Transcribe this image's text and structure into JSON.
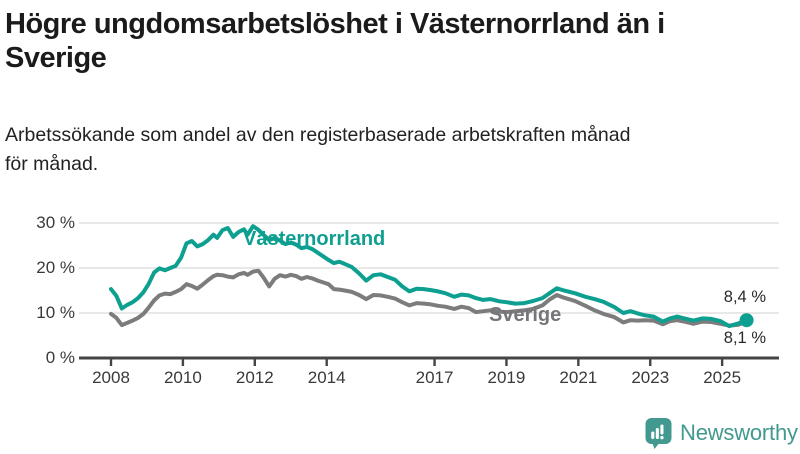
{
  "header": {
    "title_line1": "Högre ungdomsarbetslöshet i Västernorrland än i",
    "title_line2": "Sverige",
    "subtitle_line1": "Arbetssökande som andel av den registerbaserade arbetskraften månad",
    "subtitle_line2": "för månad."
  },
  "footer": {
    "brand_name": "Newsworthy",
    "brand_color": "#42998f"
  },
  "chart_data": {
    "type": "line",
    "title": "Högre ungdomsarbetslöshet i Västernorrland än i Sverige",
    "subtitle": "Arbetssökande som andel av den registerbaserade arbetskraften månad för månad.",
    "unit": "%",
    "ylim": [
      0,
      32
    ],
    "xlim": [
      2007.9,
      2026.6
    ],
    "grid": "horizontal",
    "colors": {
      "grid": "#dadada",
      "axis": "#454545",
      "tick_label": "#3a3a3a"
    },
    "y_ticks": [
      {
        "value": 0,
        "label": "0 %"
      },
      {
        "value": 10,
        "label": "10 %"
      },
      {
        "value": 20,
        "label": "20 %"
      },
      {
        "value": 30,
        "label": "30 %"
      }
    ],
    "x_ticks": [
      {
        "year": 2008,
        "label": "2008"
      },
      {
        "year": 2010,
        "label": "2010"
      },
      {
        "year": 2012,
        "label": "2012"
      },
      {
        "year": 2014,
        "label": "2014"
      },
      {
        "year": 2017,
        "label": "2017"
      },
      {
        "year": 2019,
        "label": "2019"
      },
      {
        "year": 2021,
        "label": "2021"
      },
      {
        "year": 2023,
        "label": "2023"
      },
      {
        "year": 2025,
        "label": "2025"
      }
    ],
    "series": [
      {
        "name": "Västernorrland",
        "color": "#0d9f90",
        "end_value": 8.4,
        "end_label": "8,4 %",
        "points": [
          [
            2008.0,
            15.3
          ],
          [
            2008.15,
            13.8
          ],
          [
            2008.3,
            11.0
          ],
          [
            2008.45,
            11.8
          ],
          [
            2008.6,
            12.4
          ],
          [
            2008.75,
            13.3
          ],
          [
            2008.9,
            14.6
          ],
          [
            2009.05,
            16.5
          ],
          [
            2009.2,
            19.0
          ],
          [
            2009.35,
            19.9
          ],
          [
            2009.5,
            19.5
          ],
          [
            2009.65,
            20.0
          ],
          [
            2009.8,
            20.5
          ],
          [
            2009.95,
            22.3
          ],
          [
            2010.1,
            25.5
          ],
          [
            2010.25,
            26.0
          ],
          [
            2010.4,
            24.8
          ],
          [
            2010.55,
            25.3
          ],
          [
            2010.7,
            26.2
          ],
          [
            2010.85,
            27.4
          ],
          [
            2010.95,
            26.7
          ],
          [
            2011.1,
            28.4
          ],
          [
            2011.25,
            28.9
          ],
          [
            2011.4,
            26.9
          ],
          [
            2011.55,
            28.0
          ],
          [
            2011.7,
            28.6
          ],
          [
            2011.8,
            27.4
          ],
          [
            2011.95,
            29.3
          ],
          [
            2012.1,
            28.5
          ],
          [
            2012.25,
            27.3
          ],
          [
            2012.4,
            26.2
          ],
          [
            2012.55,
            26.7
          ],
          [
            2012.7,
            26.1
          ],
          [
            2012.85,
            25.3
          ],
          [
            2013.0,
            25.7
          ],
          [
            2013.15,
            25.2
          ],
          [
            2013.3,
            24.4
          ],
          [
            2013.45,
            24.7
          ],
          [
            2013.6,
            24.2
          ],
          [
            2013.75,
            23.4
          ],
          [
            2013.9,
            22.6
          ],
          [
            2014.05,
            21.8
          ],
          [
            2014.2,
            21.1
          ],
          [
            2014.35,
            21.4
          ],
          [
            2014.5,
            20.9
          ],
          [
            2014.7,
            20.2
          ],
          [
            2014.9,
            18.8
          ],
          [
            2015.1,
            17.2
          ],
          [
            2015.3,
            18.4
          ],
          [
            2015.5,
            18.6
          ],
          [
            2015.7,
            18.0
          ],
          [
            2015.9,
            17.4
          ],
          [
            2016.1,
            15.9
          ],
          [
            2016.3,
            14.8
          ],
          [
            2016.5,
            15.4
          ],
          [
            2016.7,
            15.3
          ],
          [
            2016.9,
            15.1
          ],
          [
            2017.1,
            14.8
          ],
          [
            2017.3,
            14.4
          ],
          [
            2017.55,
            13.6
          ],
          [
            2017.75,
            14.1
          ],
          [
            2017.95,
            13.9
          ],
          [
            2018.15,
            13.3
          ],
          [
            2018.35,
            12.9
          ],
          [
            2018.55,
            13.1
          ],
          [
            2018.8,
            12.6
          ],
          [
            2019.0,
            12.4
          ],
          [
            2019.25,
            12.1
          ],
          [
            2019.5,
            12.2
          ],
          [
            2019.75,
            12.7
          ],
          [
            2020.0,
            13.3
          ],
          [
            2020.2,
            14.4
          ],
          [
            2020.4,
            15.5
          ],
          [
            2020.6,
            15.0
          ],
          [
            2020.9,
            14.4
          ],
          [
            2021.2,
            13.6
          ],
          [
            2021.45,
            13.1
          ],
          [
            2021.7,
            12.5
          ],
          [
            2022.0,
            11.3
          ],
          [
            2022.25,
            10.0
          ],
          [
            2022.45,
            10.4
          ],
          [
            2022.65,
            9.9
          ],
          [
            2022.85,
            9.5
          ],
          [
            2023.1,
            9.2
          ],
          [
            2023.35,
            8.1
          ],
          [
            2023.55,
            8.8
          ],
          [
            2023.75,
            9.2
          ],
          [
            2023.95,
            8.8
          ],
          [
            2024.2,
            8.3
          ],
          [
            2024.45,
            8.8
          ],
          [
            2024.7,
            8.7
          ],
          [
            2024.95,
            8.2
          ],
          [
            2025.2,
            7.1
          ],
          [
            2025.45,
            7.7
          ],
          [
            2025.68,
            8.4
          ]
        ]
      },
      {
        "name": "Sverige",
        "color": "#7c7c7c",
        "end_value": 8.1,
        "end_label": "8,1 %",
        "points": [
          [
            2008.0,
            9.8
          ],
          [
            2008.15,
            8.9
          ],
          [
            2008.3,
            7.3
          ],
          [
            2008.45,
            7.8
          ],
          [
            2008.6,
            8.3
          ],
          [
            2008.75,
            8.9
          ],
          [
            2008.9,
            9.8
          ],
          [
            2009.05,
            11.2
          ],
          [
            2009.2,
            12.8
          ],
          [
            2009.35,
            13.9
          ],
          [
            2009.5,
            14.3
          ],
          [
            2009.65,
            14.2
          ],
          [
            2009.8,
            14.7
          ],
          [
            2009.95,
            15.3
          ],
          [
            2010.1,
            16.4
          ],
          [
            2010.25,
            16.0
          ],
          [
            2010.4,
            15.4
          ],
          [
            2010.55,
            16.3
          ],
          [
            2010.7,
            17.3
          ],
          [
            2010.85,
            18.2
          ],
          [
            2010.95,
            18.5
          ],
          [
            2011.1,
            18.4
          ],
          [
            2011.25,
            18.1
          ],
          [
            2011.4,
            17.9
          ],
          [
            2011.55,
            18.6
          ],
          [
            2011.7,
            18.9
          ],
          [
            2011.8,
            18.5
          ],
          [
            2011.95,
            19.2
          ],
          [
            2012.1,
            19.4
          ],
          [
            2012.25,
            17.8
          ],
          [
            2012.4,
            15.9
          ],
          [
            2012.55,
            17.6
          ],
          [
            2012.7,
            18.4
          ],
          [
            2012.85,
            18.1
          ],
          [
            2013.0,
            18.5
          ],
          [
            2013.15,
            18.2
          ],
          [
            2013.3,
            17.6
          ],
          [
            2013.45,
            18.0
          ],
          [
            2013.6,
            17.7
          ],
          [
            2013.75,
            17.2
          ],
          [
            2013.9,
            16.8
          ],
          [
            2014.05,
            16.4
          ],
          [
            2014.2,
            15.3
          ],
          [
            2014.35,
            15.2
          ],
          [
            2014.5,
            15.0
          ],
          [
            2014.7,
            14.7
          ],
          [
            2014.9,
            14.0
          ],
          [
            2015.1,
            13.1
          ],
          [
            2015.3,
            14.0
          ],
          [
            2015.5,
            13.9
          ],
          [
            2015.7,
            13.6
          ],
          [
            2015.9,
            13.2
          ],
          [
            2016.1,
            12.4
          ],
          [
            2016.3,
            11.7
          ],
          [
            2016.5,
            12.2
          ],
          [
            2016.7,
            12.1
          ],
          [
            2016.9,
            11.9
          ],
          [
            2017.1,
            11.6
          ],
          [
            2017.3,
            11.4
          ],
          [
            2017.55,
            10.9
          ],
          [
            2017.75,
            11.4
          ],
          [
            2017.95,
            11.1
          ],
          [
            2018.15,
            10.2
          ],
          [
            2018.35,
            10.4
          ],
          [
            2018.55,
            10.6
          ],
          [
            2018.8,
            10.3
          ],
          [
            2019.0,
            10.2
          ],
          [
            2019.25,
            10.4
          ],
          [
            2019.5,
            10.6
          ],
          [
            2019.75,
            10.9
          ],
          [
            2020.0,
            11.7
          ],
          [
            2020.2,
            13.0
          ],
          [
            2020.4,
            14.0
          ],
          [
            2020.6,
            13.4
          ],
          [
            2020.9,
            12.7
          ],
          [
            2021.2,
            11.6
          ],
          [
            2021.45,
            10.6
          ],
          [
            2021.7,
            9.8
          ],
          [
            2022.0,
            9.1
          ],
          [
            2022.25,
            7.9
          ],
          [
            2022.45,
            8.4
          ],
          [
            2022.65,
            8.3
          ],
          [
            2022.85,
            8.4
          ],
          [
            2023.1,
            8.3
          ],
          [
            2023.35,
            7.5
          ],
          [
            2023.55,
            8.2
          ],
          [
            2023.75,
            8.4
          ],
          [
            2023.95,
            8.1
          ],
          [
            2024.2,
            7.6
          ],
          [
            2024.45,
            8.1
          ],
          [
            2024.7,
            8.0
          ],
          [
            2024.95,
            7.6
          ],
          [
            2025.2,
            7.2
          ],
          [
            2025.45,
            7.4
          ],
          [
            2025.68,
            8.1
          ]
        ]
      }
    ]
  }
}
